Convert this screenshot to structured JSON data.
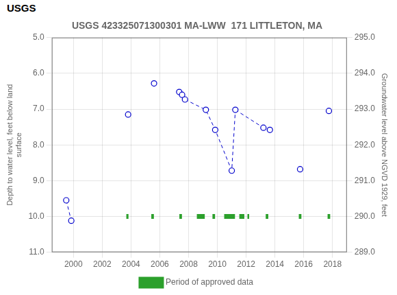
{
  "chart_data": {
    "type": "scatter",
    "title": "USGS 423325071300301 MA-LWW  171 LITTLETON, MA",
    "annotations": [
      "USGS"
    ],
    "ylabel": "Depth to water level, feet below land\nsurface",
    "y2label": "Groundwater level above NGVD 1929, feet",
    "xlim": [
      1998.5,
      2019.0
    ],
    "xticks": [
      2000,
      2002,
      2004,
      2006,
      2008,
      2010,
      2012,
      2014,
      2016,
      2018
    ],
    "ylim": [
      11.0,
      5.0
    ],
    "yticks": [
      {
        "value": 5.0,
        "label": "5.0"
      },
      {
        "value": 6.0,
        "label": "6.0"
      },
      {
        "value": 7.0,
        "label": "7.0"
      },
      {
        "value": 8.0,
        "label": "8.0"
      },
      {
        "value": 9.0,
        "label": "9.0"
      },
      {
        "value": 10.0,
        "label": "10.0"
      },
      {
        "value": 11.0,
        "label": "11.0"
      }
    ],
    "y2lim": [
      289.0,
      295.0
    ],
    "y2ticks": [
      {
        "value": 295.0,
        "label": "295.0"
      },
      {
        "value": 294.0,
        "label": "294.0"
      },
      {
        "value": 293.0,
        "label": "293.0"
      },
      {
        "value": 292.0,
        "label": "292.0"
      },
      {
        "value": 291.0,
        "label": "291.0"
      },
      {
        "value": 290.0,
        "label": "290.0"
      },
      {
        "value": 289.0,
        "label": "289.0"
      }
    ],
    "grid": true,
    "legend": "bottom",
    "series": [
      {
        "type": "line",
        "line_style": "dashed",
        "color": "#0000cc",
        "x": [
          1999.5,
          1999.85
        ],
        "values": [
          9.55,
          10.12
        ]
      },
      {
        "type": "line",
        "line_style": "dashed",
        "color": "#0000cc",
        "x": [
          2007.75,
          2009.2,
          2009.85,
          2011.0,
          2011.25
        ],
        "values": [
          6.73,
          7.02,
          7.58,
          8.72,
          7.02
        ]
      },
      {
        "type": "line",
        "line_style": "dashed",
        "color": "#0000cc",
        "x": [
          2011.25,
          2013.2
        ],
        "values": [
          7.02,
          7.52
        ]
      },
      {
        "type": "scatter",
        "marker": "circle-open",
        "color": "#0000cc",
        "x": [
          1999.5,
          1999.85,
          2003.8,
          2005.6,
          2007.35,
          2007.55,
          2007.75,
          2009.2,
          2009.85,
          2011.0,
          2011.25,
          2013.2,
          2013.65,
          2015.75,
          2017.75
        ],
        "values": [
          9.55,
          10.12,
          7.15,
          6.28,
          6.52,
          6.6,
          6.73,
          7.02,
          7.58,
          8.72,
          7.02,
          7.52,
          7.58,
          8.68,
          7.05
        ]
      },
      {
        "name": "Period of approved data",
        "type": "bar",
        "orientation": "horizontal",
        "color": "#2ca02c",
        "starts": [
          2003.675,
          2005.41,
          2007.36,
          2008.575,
          2009.66,
          2010.475,
          2011.525,
          2012.09,
          2013.36,
          2015.66,
          2017.66
        ],
        "ends": [
          2003.825,
          2005.59,
          2007.54,
          2009.125,
          2009.84,
          2011.225,
          2011.875,
          2012.21,
          2013.54,
          2015.84,
          2017.84
        ],
        "values": [
          10.0,
          10.0,
          10.0,
          10.0,
          10.0,
          10.0,
          10.0,
          10.0,
          10.0,
          10.0,
          10.0
        ]
      }
    ]
  }
}
